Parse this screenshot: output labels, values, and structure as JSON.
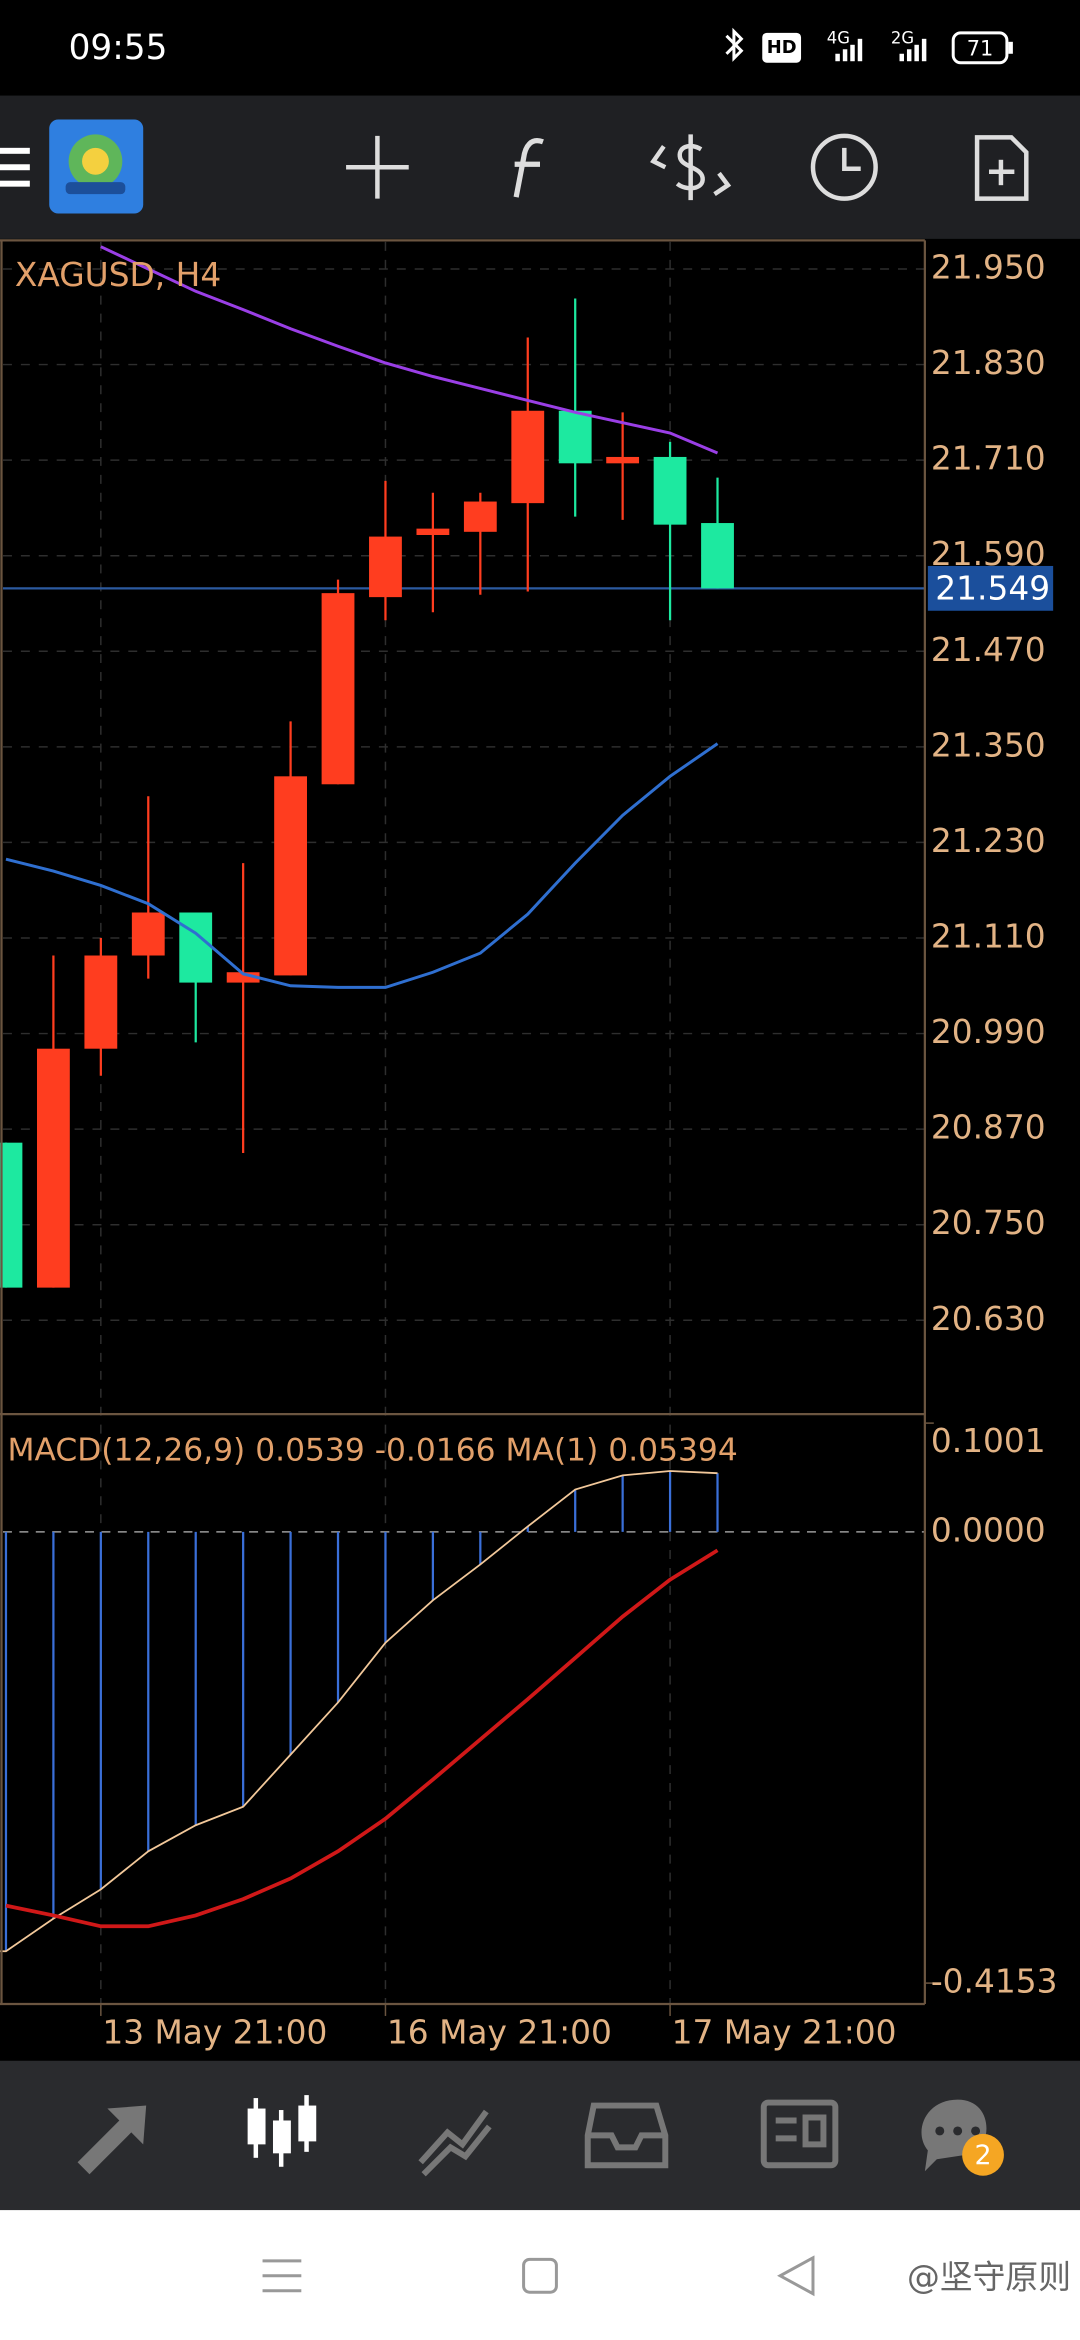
{
  "status_bar": {
    "time": "09:55",
    "network": [
      "HD",
      "4G",
      "2G"
    ],
    "battery": "71"
  },
  "chart_data": [
    {
      "type": "candlestick",
      "title": "XAGUSD, H4",
      "categories": [
        null,
        null,
        "13 May 21:00",
        null,
        null,
        null,
        null,
        null,
        "16 May 21:00",
        null,
        null,
        null,
        null,
        null,
        "17 May 21:00",
        null
      ],
      "open": [
        20.853,
        20.671,
        20.971,
        21.088,
        21.142,
        21.054,
        21.063,
        21.303,
        21.538,
        21.616,
        21.62,
        21.656,
        21.772,
        21.706,
        21.714,
        21.631
      ],
      "high": [
        20.853,
        21.088,
        21.11,
        21.288,
        21.142,
        21.204,
        21.382,
        21.56,
        21.684,
        21.669,
        21.669,
        21.864,
        21.913,
        21.77,
        21.733,
        21.688
      ],
      "low": [
        20.671,
        20.671,
        20.937,
        21.059,
        20.979,
        20.84,
        21.063,
        21.303,
        21.509,
        21.519,
        21.541,
        21.545,
        21.639,
        21.635,
        21.509,
        21.549
      ],
      "close": [
        20.671,
        20.971,
        21.088,
        21.142,
        21.054,
        21.067,
        21.313,
        21.543,
        21.614,
        21.624,
        21.658,
        21.772,
        21.706,
        21.714,
        21.629,
        21.549
      ],
      "up_color": "#ff3d1f",
      "down_color": "#1de9a0",
      "series": [
        {
          "color": "#9a3fe6",
          "values": [
            null,
            null,
            21.978,
            21.95,
            21.922,
            21.899,
            21.875,
            21.853,
            21.832,
            21.815,
            21.8,
            21.785,
            21.77,
            21.757,
            21.744,
            21.719
          ]
        },
        {
          "color": "#2f6fd0",
          "values": [
            21.209,
            21.194,
            21.176,
            21.153,
            21.116,
            21.065,
            21.05,
            21.048,
            21.048,
            21.067,
            21.091,
            21.14,
            21.204,
            21.264,
            21.313,
            21.354
          ]
        }
      ],
      "last_price": 21.549,
      "ylim": [
        20.514,
        21.984
      ],
      "yticks": [
        {
          "value": 21.95,
          "label": "21.950"
        },
        {
          "value": 21.83,
          "label": "21.830"
        },
        {
          "value": 21.71,
          "label": "21.710"
        },
        {
          "value": 21.59,
          "label": "21.590"
        },
        {
          "value": 21.47,
          "label": "21.470"
        },
        {
          "value": 21.35,
          "label": "21.350"
        },
        {
          "value": 21.23,
          "label": "21.230"
        },
        {
          "value": 21.11,
          "label": "21.110"
        },
        {
          "value": 20.99,
          "label": "20.990"
        },
        {
          "value": 20.87,
          "label": "20.870"
        },
        {
          "value": 20.75,
          "label": "20.750"
        },
        {
          "value": 20.63,
          "label": "20.630"
        }
      ],
      "grid": true
    },
    {
      "type": "macd",
      "title": "MACD(12,26,9) 0.0539 -0.0166 MA(1) 0.05394",
      "histogram": {
        "color": "#3a6fd8",
        "line_color": "#f2c89a",
        "values": [
          -0.386,
          -0.356,
          -0.329,
          -0.294,
          -0.27,
          -0.253,
          -0.205,
          -0.157,
          -0.102,
          -0.063,
          -0.03,
          0.005,
          0.039,
          0.052,
          0.056,
          0.054
        ]
      },
      "signal": {
        "color": "#d01818",
        "values": [
          -0.344,
          -0.353,
          -0.363,
          -0.363,
          -0.353,
          -0.338,
          -0.319,
          -0.294,
          -0.264,
          -0.228,
          -0.191,
          -0.154,
          -0.116,
          -0.078,
          -0.044,
          -0.017
        ]
      },
      "ylim": [
        -0.4153,
        0.1001
      ],
      "yticks": [
        0.1001,
        {
          "value": 0,
          "label": "0.0000"
        },
        -0.4153
      ]
    }
  ],
  "tab_bar": {
    "badge": "2"
  },
  "watermark": "@坚守原则"
}
